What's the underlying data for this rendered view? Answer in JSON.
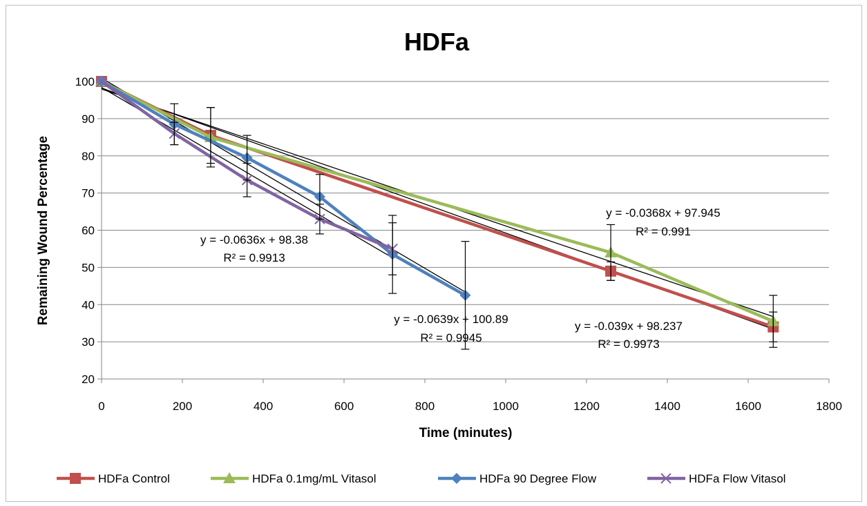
{
  "chart_data": {
    "type": "line",
    "title": "HDFa",
    "xlabel": "Time (minutes)",
    "ylabel": "Remaining Wound Percentage",
    "xlim": [
      0,
      1800
    ],
    "ylim": [
      20,
      100
    ],
    "xticks": [
      "0",
      "200",
      "400",
      "600",
      "800",
      "1000",
      "1200",
      "1400",
      "1600",
      "1800"
    ],
    "yticks": [
      "20",
      "30",
      "40",
      "50",
      "60",
      "70",
      "80",
      "90",
      "100"
    ],
    "grid": "horizontal",
    "legend_position": "bottom",
    "series": [
      {
        "name": "HDFa Control",
        "color": "#c0504d",
        "marker": "square",
        "x": [
          0,
          270,
          1260,
          1662
        ],
        "y": [
          100,
          85.5,
          49,
          34
        ],
        "err": [
          0,
          7.5,
          2.5,
          4
        ],
        "trend": {
          "slope": -0.039,
          "intercept": 98.237,
          "label": "y = -0.039x + 98.237",
          "r2": "R² = 0.9973"
        }
      },
      {
        "name": "HDFa 0.1mg/mL Vitasol",
        "color": "#9bbb59",
        "marker": "triangle",
        "x": [
          0,
          270,
          1260,
          1662
        ],
        "y": [
          100,
          85,
          54,
          35.5
        ],
        "err": [
          0,
          8,
          7.5,
          7
        ],
        "trend": {
          "slope": -0.0368,
          "intercept": 97.945,
          "label": "y = -0.0368x + 97.945",
          "r2": "R² = 0.991"
        }
      },
      {
        "name": "HDFa 90 Degree Flow",
        "color": "#4f81bd",
        "marker": "diamond",
        "x": [
          0,
          180,
          360,
          540,
          720,
          900
        ],
        "y": [
          100,
          88.5,
          79.5,
          69,
          53.5,
          42.5
        ],
        "err": [
          0,
          5.5,
          6,
          6,
          10.5,
          14.5
        ],
        "trend": {
          "slope": -0.0639,
          "intercept": 100.89,
          "label": "y = -0.0639x + 100.89",
          "r2": "R² = 0.9945"
        }
      },
      {
        "name": "HDFa Flow Vitasol",
        "color": "#8064a2",
        "marker": "x",
        "x": [
          0,
          180,
          360,
          540,
          720
        ],
        "y": [
          100,
          86,
          73.5,
          63,
          55
        ],
        "err": [
          0,
          3,
          4.5,
          4,
          7
        ],
        "trend": {
          "slope": -0.0636,
          "intercept": 98.38,
          "label": "y = -0.0636x + 98.38",
          "r2": "R² = 0.9913"
        }
      }
    ]
  }
}
